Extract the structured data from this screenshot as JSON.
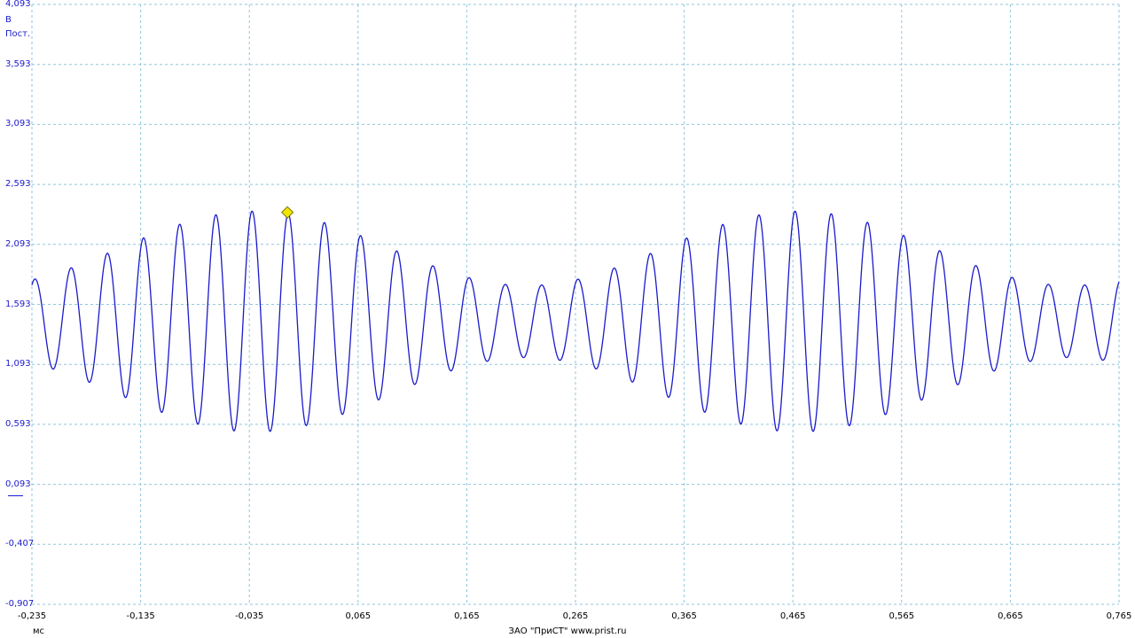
{
  "chart_data": {
    "type": "line",
    "title": "",
    "xlabel": "",
    "ylabel": "",
    "x_unit": "мс",
    "y_unit": "В",
    "coupling": "Пост.",
    "footer": "ЗАО \"ПриСТ\"   www.prist.ru",
    "xlim": [
      -0.235,
      0.765
    ],
    "ylim": [
      -0.907,
      4.093
    ],
    "x_ticks": [
      "-0,235",
      "-0,135",
      "-0,035",
      "0,065",
      "0,165",
      "0,265",
      "0,365",
      "0,465",
      "0,565",
      "0,665",
      "0,765"
    ],
    "y_ticks": [
      "4,093",
      "3,593",
      "3,093",
      "2,593",
      "2,093",
      "1,593",
      "1,093",
      "0,593",
      "0,093",
      "-0,407",
      "-0,907"
    ],
    "grid": true,
    "series": [
      {
        "color": "#1a1acc",
        "waveform": "amplitude-modulated sine",
        "carrier_period_ms": 0.0333,
        "envelope_period_ms": 0.5,
        "center_V": 1.45,
        "min_amplitude_V": 0.3,
        "max_amplitude_V": 0.92,
        "envelope_max_at_ms": [
          -0.03,
          0.47
        ]
      }
    ],
    "marker": {
      "shape": "diamond",
      "color": "#f2e600",
      "x": 0.0,
      "y": 2.36
    }
  }
}
